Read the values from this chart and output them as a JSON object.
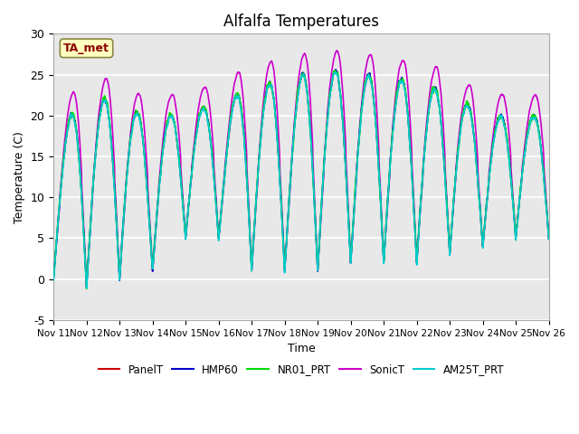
{
  "title": "Alfalfa Temperatures",
  "xlabel": "Time",
  "ylabel": "Temperature (C)",
  "ylim": [
    -5,
    30
  ],
  "xlim": [
    0,
    15
  ],
  "x_tick_labels": [
    "Nov 11",
    "Nov 12",
    "Nov 13",
    "Nov 14",
    "Nov 15",
    "Nov 16",
    "Nov 17",
    "Nov 18",
    "Nov 19",
    "Nov 20",
    "Nov 21",
    "Nov 22",
    "Nov 23",
    "Nov 24",
    "Nov 25",
    "Nov 26"
  ],
  "annotation_text": "TA_met",
  "annotation_color": "#8B0000",
  "annotation_bg": "#FFFFC0",
  "series": [
    {
      "name": "PanelT",
      "color": "#CC0000",
      "lw": 0.8,
      "zorder": 3
    },
    {
      "name": "HMP60",
      "color": "#0000CC",
      "lw": 1.2,
      "zorder": 4
    },
    {
      "name": "NR01_PRT",
      "color": "#00DD00",
      "lw": 1.2,
      "zorder": 5
    },
    {
      "name": "SonicT",
      "color": "#CC00CC",
      "lw": 1.2,
      "zorder": 2
    },
    {
      "name": "AM25T_PRT",
      "color": "#00CCCC",
      "lw": 1.2,
      "zorder": 6
    }
  ],
  "bg_color": "#E8E8E8",
  "fig_bg": "#FFFFFF",
  "grid_color": "#FFFFFF",
  "yticks": [
    -5,
    0,
    5,
    10,
    15,
    20,
    25,
    30
  ]
}
